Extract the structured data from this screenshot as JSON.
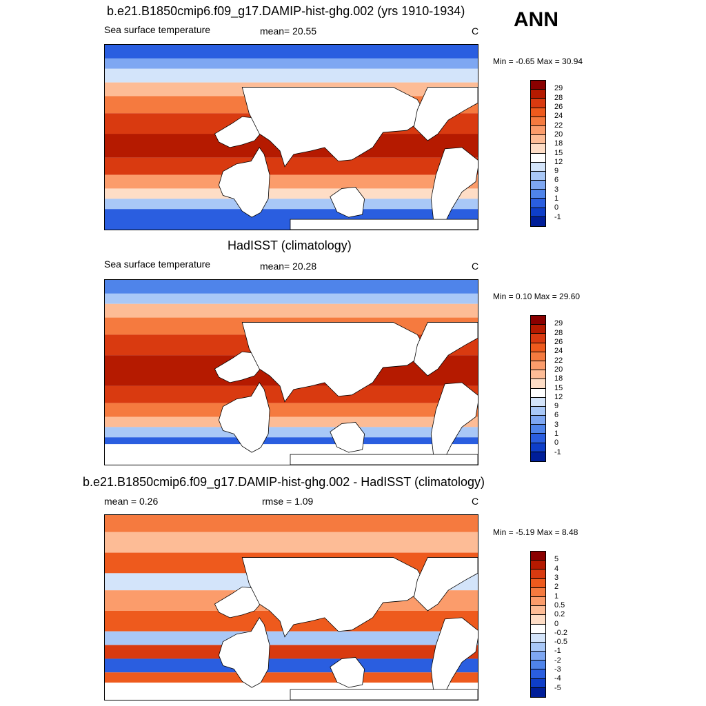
{
  "season": "ANN",
  "panels": [
    {
      "title": "b.e21.B1850cmip6.f09_g17.DAMIP-hist-ghg.002 (yrs 1910-1934)",
      "left_label": "Sea surface temperature",
      "center_label": "mean=  20.55",
      "units": "C",
      "range_text": "Min =  -0.65 Max =  30.94",
      "map": "model",
      "colorbar": {
        "ticks": [
          "29",
          "28",
          "26",
          "24",
          "22",
          "20",
          "18",
          "15",
          "12",
          "9",
          "6",
          "3",
          "1",
          "0",
          "-1"
        ],
        "colors": [
          "#8a0000",
          "#b51a00",
          "#d93a10",
          "#ee5a1d",
          "#f57a3f",
          "#fb9c6b",
          "#fdbc96",
          "#feddc6",
          "#ffffff",
          "#d3e4fa",
          "#a9c8f7",
          "#7ea7f2",
          "#4f84ea",
          "#2a5ee0",
          "#0e3ec9",
          "#001e99"
        ]
      }
    },
    {
      "title": "HadISST (climatology)",
      "left_label": "Sea surface temperature",
      "center_label": "mean=  20.28",
      "units": "C",
      "range_text": "Min =   0.10 Max =  29.60",
      "map": "obs",
      "colorbar": {
        "ticks": [
          "29",
          "28",
          "26",
          "24",
          "22",
          "20",
          "18",
          "15",
          "12",
          "9",
          "6",
          "3",
          "1",
          "0",
          "-1"
        ],
        "colors": [
          "#8a0000",
          "#b51a00",
          "#d93a10",
          "#ee5a1d",
          "#f57a3f",
          "#fb9c6b",
          "#fdbc96",
          "#feddc6",
          "#ffffff",
          "#d3e4fa",
          "#a9c8f7",
          "#7ea7f2",
          "#4f84ea",
          "#2a5ee0",
          "#0e3ec9",
          "#001e99"
        ]
      }
    },
    {
      "title": "b.e21.B1850cmip6.f09_g17.DAMIP-hist-ghg.002 - HadISST (climatology)",
      "left_label": "mean =   0.26",
      "center_label": "rmse =   1.09",
      "units": "C",
      "range_text": "Min =  -5.19 Max =   8.48",
      "map": "diff",
      "colorbar": {
        "ticks": [
          "5",
          "4",
          "3",
          "2",
          "1",
          "0.5",
          "0.2",
          "0",
          "-0.2",
          "-0.5",
          "-1",
          "-2",
          "-3",
          "-4",
          "-5"
        ],
        "colors": [
          "#8a0000",
          "#b51a00",
          "#d93a10",
          "#ee5a1d",
          "#f57a3f",
          "#fb9c6b",
          "#fdbc96",
          "#feddc6",
          "#ffffff",
          "#d3e4fa",
          "#a9c8f7",
          "#7ea7f2",
          "#4f84ea",
          "#2a5ee0",
          "#0e3ec9",
          "#001e99"
        ]
      }
    }
  ]
}
